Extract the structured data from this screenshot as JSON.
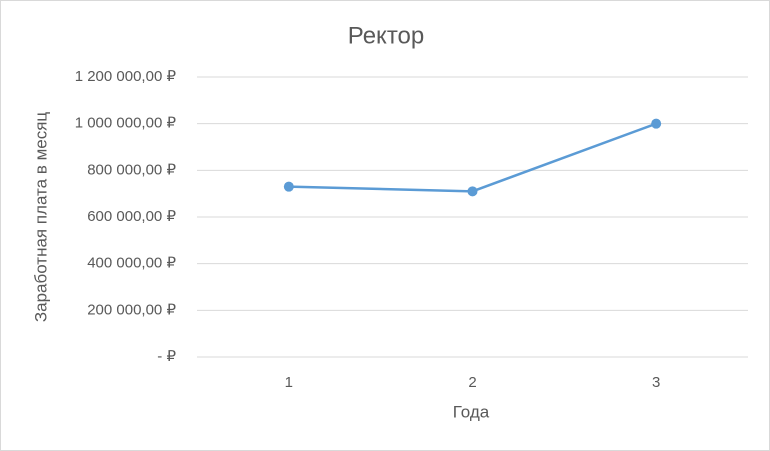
{
  "chart_data": {
    "type": "line",
    "title": "Ректор",
    "x_label": "Года",
    "y_label": "Заработная плата в месяц",
    "categories": [
      "1",
      "2",
      "3"
    ],
    "series": [
      {
        "name": "Ректор",
        "color": "#5b9bd5",
        "values": [
          730000,
          710000,
          1000000
        ]
      }
    ],
    "ylim": [
      0,
      1200000
    ],
    "yticks": [
      {
        "value": 0,
        "label": "-  ₽"
      },
      {
        "value": 200000,
        "label": "200 000,00 ₽"
      },
      {
        "value": 400000,
        "label": "400 000,00 ₽"
      },
      {
        "value": 600000,
        "label": "600 000,00 ₽"
      },
      {
        "value": 800000,
        "label": "800 000,00 ₽"
      },
      {
        "value": 1000000,
        "label": "1 000 000,00 ₽"
      },
      {
        "value": 1200000,
        "label": "1 200 000,00 ₽"
      }
    ],
    "grid": true
  }
}
